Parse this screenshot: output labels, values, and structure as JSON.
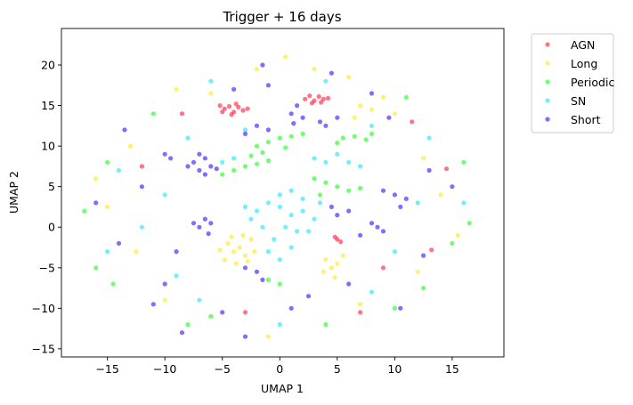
{
  "chart_data": {
    "type": "scatter",
    "title": "Trigger + 16 days",
    "xlabel": "UMAP 1",
    "ylabel": "UMAP 2",
    "xlim": [
      -19,
      19.5
    ],
    "ylim": [
      -16,
      24.5
    ],
    "xticks": [
      -15,
      -10,
      -5,
      0,
      5,
      10,
      15
    ],
    "yticks": [
      -15,
      -10,
      -5,
      0,
      5,
      10,
      15,
      20
    ],
    "legend_position": "outside-upper-right",
    "grid": false,
    "series": [
      {
        "name": "AGN",
        "color": "#ff1f3c",
        "points": [
          [
            -5.2,
            15.0
          ],
          [
            -4.8,
            14.6
          ],
          [
            -4.4,
            14.9
          ],
          [
            -4.0,
            14.2
          ],
          [
            -3.6,
            14.8
          ],
          [
            -3.2,
            14.4
          ],
          [
            -2.8,
            14.6
          ],
          [
            -5.0,
            14.2
          ],
          [
            -3.8,
            15.2
          ],
          [
            -4.2,
            13.9
          ],
          [
            2.2,
            15.8
          ],
          [
            2.6,
            16.2
          ],
          [
            3.0,
            15.6
          ],
          [
            3.4,
            16.1
          ],
          [
            3.8,
            15.8
          ],
          [
            4.2,
            15.9
          ],
          [
            2.8,
            15.3
          ],
          [
            3.6,
            15.4
          ],
          [
            5.0,
            -1.5
          ],
          [
            5.3,
            -1.8
          ],
          [
            4.8,
            -1.2
          ],
          [
            13.2,
            -2.8
          ],
          [
            14.5,
            7.2
          ],
          [
            -12.0,
            7.5
          ],
          [
            9.0,
            -5.0
          ],
          [
            -3.0,
            -10.5
          ],
          [
            11.5,
            13.0
          ],
          [
            -8.5,
            14.0
          ],
          [
            7.0,
            -10.5
          ]
        ]
      },
      {
        "name": "Long",
        "color": "#ffe81a",
        "points": [
          [
            -4.5,
            -2.0
          ],
          [
            -4.0,
            -3.0
          ],
          [
            -3.5,
            -2.5
          ],
          [
            -3.0,
            -3.5
          ],
          [
            -2.5,
            -1.5
          ],
          [
            -4.8,
            -4.0
          ],
          [
            -3.8,
            -4.5
          ],
          [
            -2.8,
            -4.2
          ],
          [
            -5.2,
            -2.8
          ],
          [
            -3.2,
            -1.0
          ],
          [
            -4.2,
            -1.2
          ],
          [
            -2.2,
            -3.0
          ],
          [
            4.0,
            -4.0
          ],
          [
            4.5,
            -5.0
          ],
          [
            5.0,
            -4.5
          ],
          [
            5.5,
            -3.5
          ],
          [
            3.8,
            -5.5
          ],
          [
            4.8,
            -6.2
          ],
          [
            7.0,
            15.0
          ],
          [
            8.0,
            14.5
          ],
          [
            6.5,
            13.5
          ],
          [
            9.0,
            16.0
          ],
          [
            -6.0,
            16.5
          ],
          [
            -9.0,
            17.0
          ],
          [
            10.0,
            14.0
          ],
          [
            12.5,
            8.5
          ],
          [
            -13.0,
            10.0
          ],
          [
            14.0,
            4.0
          ],
          [
            -15.0,
            2.5
          ],
          [
            0.5,
            21.0
          ],
          [
            -2.0,
            19.5
          ],
          [
            3.0,
            19.5
          ],
          [
            6.0,
            18.5
          ],
          [
            -10.0,
            -9.0
          ],
          [
            7.0,
            -9.5
          ],
          [
            -1.0,
            -13.5
          ],
          [
            12.0,
            -5.5
          ],
          [
            -12.5,
            -3.0
          ],
          [
            15.5,
            -1.0
          ],
          [
            -16.0,
            6.0
          ]
        ]
      },
      {
        "name": "Periodic",
        "color": "#1aff1a",
        "points": [
          [
            -2.0,
            10.0
          ],
          [
            -1.0,
            10.5
          ],
          [
            0.0,
            11.0
          ],
          [
            1.0,
            11.2
          ],
          [
            2.0,
            11.5
          ],
          [
            -1.5,
            9.2
          ],
          [
            0.5,
            9.8
          ],
          [
            -2.5,
            8.8
          ],
          [
            5.5,
            11.0
          ],
          [
            6.5,
            11.2
          ],
          [
            7.5,
            10.8
          ],
          [
            8.0,
            11.5
          ],
          [
            5.0,
            10.4
          ],
          [
            3.0,
            6.0
          ],
          [
            4.0,
            5.5
          ],
          [
            5.0,
            5.0
          ],
          [
            6.0,
            4.5
          ],
          [
            7.0,
            4.8
          ],
          [
            3.5,
            4.0
          ],
          [
            -4.0,
            7.0
          ],
          [
            -3.0,
            7.5
          ],
          [
            -2.0,
            7.8
          ],
          [
            -1.0,
            8.2
          ],
          [
            -5.0,
            6.5
          ],
          [
            -1.0,
            -6.5
          ],
          [
            0.0,
            -7.0
          ],
          [
            15.0,
            -2.0
          ],
          [
            16.5,
            0.5
          ],
          [
            -16.0,
            -5.0
          ],
          [
            -14.5,
            -7.0
          ],
          [
            12.5,
            -7.5
          ],
          [
            -8.0,
            -12.0
          ],
          [
            10.0,
            -10.0
          ],
          [
            -11.0,
            14.0
          ],
          [
            16.0,
            8.0
          ],
          [
            -6.0,
            -11.0
          ],
          [
            4.0,
            -12.0
          ],
          [
            -15.0,
            8.0
          ],
          [
            11.0,
            16.0
          ],
          [
            -17.0,
            2.0
          ]
        ]
      },
      {
        "name": "SN",
        "color": "#1ae5ff",
        "points": [
          [
            -2.0,
            2.0
          ],
          [
            -1.0,
            3.0
          ],
          [
            0.0,
            2.5
          ],
          [
            1.0,
            1.5
          ],
          [
            2.0,
            2.0
          ],
          [
            3.0,
            1.0
          ],
          [
            -1.5,
            0.0
          ],
          [
            0.5,
            0.0
          ],
          [
            1.5,
            -0.5
          ],
          [
            2.5,
            -0.5
          ],
          [
            -0.5,
            -1.5
          ],
          [
            1.0,
            -2.5
          ],
          [
            -2.5,
            1.0
          ],
          [
            0.0,
            4.0
          ],
          [
            1.0,
            4.5
          ],
          [
            2.0,
            3.5
          ],
          [
            -1.0,
            -3.0
          ],
          [
            0.0,
            -4.0
          ],
          [
            3.5,
            3.0
          ],
          [
            -3.0,
            2.5
          ],
          [
            4.0,
            8.0
          ],
          [
            5.0,
            9.0
          ],
          [
            6.0,
            8.0
          ],
          [
            7.0,
            7.5
          ],
          [
            3.0,
            8.5
          ],
          [
            -4.0,
            8.5
          ],
          [
            -5.0,
            8.0
          ],
          [
            -3.0,
            12.0
          ],
          [
            8.0,
            12.5
          ],
          [
            -8.0,
            11.0
          ],
          [
            -10.0,
            4.0
          ],
          [
            -12.0,
            0.0
          ],
          [
            -9.0,
            -6.0
          ],
          [
            10.0,
            -3.0
          ],
          [
            12.0,
            3.0
          ],
          [
            -14.0,
            7.0
          ],
          [
            13.0,
            11.0
          ],
          [
            -6.0,
            18.0
          ],
          [
            4.0,
            18.0
          ],
          [
            0.0,
            -12.0
          ],
          [
            -15.0,
            -3.0
          ],
          [
            16.0,
            3.0
          ],
          [
            8.0,
            -8.0
          ],
          [
            -7.0,
            -9.0
          ]
        ]
      },
      {
        "name": "Short",
        "color": "#3314ff",
        "points": [
          [
            -7.5,
            8.0
          ],
          [
            -7.0,
            7.0
          ],
          [
            -6.5,
            8.5
          ],
          [
            -6.0,
            7.5
          ],
          [
            -5.5,
            7.2
          ],
          [
            -7.0,
            9.0
          ],
          [
            -8.0,
            7.5
          ],
          [
            -6.5,
            6.5
          ],
          [
            -7.0,
            0.0
          ],
          [
            -6.5,
            1.0
          ],
          [
            -6.0,
            0.5
          ],
          [
            -7.5,
            0.5
          ],
          [
            -6.2,
            -0.8
          ],
          [
            -10.0,
            9.0
          ],
          [
            -9.5,
            8.5
          ],
          [
            1.0,
            14.0
          ],
          [
            1.5,
            15.0
          ],
          [
            2.0,
            13.5
          ],
          [
            1.2,
            12.8
          ],
          [
            3.5,
            13.0
          ],
          [
            4.0,
            12.5
          ],
          [
            5.0,
            13.5
          ],
          [
            -2.0,
            12.5
          ],
          [
            -1.0,
            12.0
          ],
          [
            -3.0,
            11.5
          ],
          [
            9.0,
            4.5
          ],
          [
            10.0,
            4.0
          ],
          [
            11.0,
            3.5
          ],
          [
            10.5,
            2.5
          ],
          [
            8.5,
            0.0
          ],
          [
            9.0,
            -0.5
          ],
          [
            8.0,
            0.5
          ],
          [
            5.0,
            1.5
          ],
          [
            6.0,
            2.0
          ],
          [
            4.5,
            2.5
          ],
          [
            7.0,
            -1.0
          ],
          [
            -3.0,
            -5.0
          ],
          [
            -2.0,
            -5.5
          ],
          [
            -1.5,
            -6.5
          ],
          [
            -9.0,
            -3.0
          ],
          [
            -10.0,
            -7.0
          ],
          [
            -12.0,
            5.0
          ],
          [
            -14.0,
            -2.0
          ],
          [
            13.0,
            7.0
          ],
          [
            -4.0,
            17.0
          ],
          [
            4.5,
            19.0
          ],
          [
            -1.0,
            17.5
          ],
          [
            2.5,
            -8.5
          ],
          [
            -5.0,
            -10.5
          ],
          [
            6.0,
            -7.0
          ],
          [
            12.5,
            -3.5
          ],
          [
            -13.5,
            12.0
          ],
          [
            9.5,
            13.5
          ],
          [
            -11.0,
            -9.5
          ],
          [
            -3.0,
            -13.5
          ],
          [
            15.0,
            5.0
          ],
          [
            -16.0,
            3.0
          ],
          [
            1.0,
            -10.0
          ],
          [
            -8.5,
            -13.0
          ],
          [
            10.5,
            -10.0
          ],
          [
            -1.5,
            20.0
          ],
          [
            8.0,
            16.5
          ]
        ]
      }
    ]
  }
}
